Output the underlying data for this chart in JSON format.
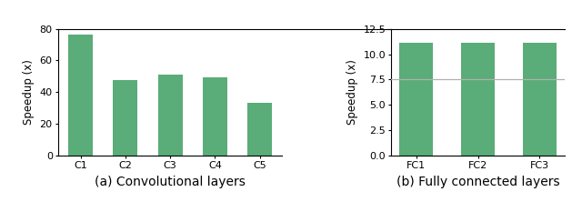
{
  "conv_categories": [
    "C1",
    "C2",
    "C3",
    "C4",
    "C5"
  ],
  "conv_values": [
    76.5,
    47.5,
    51.0,
    49.5,
    33.5
  ],
  "conv_ylim": [
    0,
    80
  ],
  "conv_yticks": [
    0,
    20,
    40,
    60,
    80
  ],
  "conv_ylabel": "Speedup (x)",
  "conv_xlabel": "(a) Convolutional layers",
  "fc_categories": [
    "FC1",
    "FC2",
    "FC3"
  ],
  "fc_values": [
    11.1,
    11.1,
    11.1
  ],
  "fc_ylim": [
    0.0,
    12.5
  ],
  "fc_yticks": [
    0.0,
    2.5,
    5.0,
    7.5,
    10.0,
    12.5
  ],
  "fc_ylabel": "Speedup (x)",
  "fc_xlabel": "(b) Fully connected layers",
  "fc_hline": 7.5,
  "bar_color": "#5aac78",
  "bar_edgecolor": "none",
  "background_color": "#ffffff",
  "xlabel_fontsize": 10,
  "ylabel_fontsize": 8.5,
  "tick_fontsize": 8
}
